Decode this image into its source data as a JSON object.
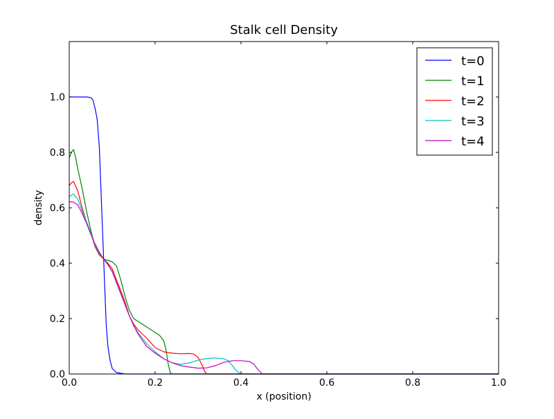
{
  "chart_data": {
    "type": "line",
    "title": "Stalk cell Density",
    "xlabel": "x (position)",
    "ylabel": "density",
    "xlim": [
      0.0,
      1.0
    ],
    "ylim": [
      0.0,
      1.2
    ],
    "grid": false,
    "legend_position": "top-right",
    "x_ticks": [
      0.0,
      0.2,
      0.4,
      0.6,
      0.8,
      1.0
    ],
    "x_tick_labels": [
      "0.0",
      "0.2",
      "0.4",
      "0.6",
      "0.8",
      "1.0"
    ],
    "y_ticks": [
      0.0,
      0.2,
      0.4,
      0.6,
      0.8,
      1.0
    ],
    "y_tick_labels": [
      "0.0",
      "0.2",
      "0.4",
      "0.6",
      "0.8",
      "1.0"
    ],
    "series": [
      {
        "name": "t=0",
        "color": "#0000ff",
        "points": [
          [
            0.0,
            1.0
          ],
          [
            0.02,
            1.0
          ],
          [
            0.04,
            1.0
          ],
          [
            0.05,
            0.998
          ],
          [
            0.055,
            0.99
          ],
          [
            0.06,
            0.96
          ],
          [
            0.065,
            0.92
          ],
          [
            0.07,
            0.82
          ],
          [
            0.073,
            0.7
          ],
          [
            0.076,
            0.58
          ],
          [
            0.08,
            0.42
          ],
          [
            0.083,
            0.3
          ],
          [
            0.086,
            0.18
          ],
          [
            0.09,
            0.1
          ],
          [
            0.095,
            0.05
          ],
          [
            0.1,
            0.02
          ],
          [
            0.11,
            0.005
          ],
          [
            0.13,
            0.0
          ],
          [
            0.2,
            0.0
          ],
          [
            0.4,
            0.0
          ],
          [
            0.6,
            0.0
          ],
          [
            0.8,
            0.0
          ],
          [
            1.0,
            0.0
          ]
        ]
      },
      {
        "name": "t=1",
        "color": "#008000",
        "points": [
          [
            0.0,
            0.78
          ],
          [
            0.005,
            0.8
          ],
          [
            0.01,
            0.81
          ],
          [
            0.015,
            0.78
          ],
          [
            0.02,
            0.74
          ],
          [
            0.03,
            0.67
          ],
          [
            0.04,
            0.59
          ],
          [
            0.05,
            0.52
          ],
          [
            0.06,
            0.46
          ],
          [
            0.07,
            0.43
          ],
          [
            0.08,
            0.415
          ],
          [
            0.09,
            0.41
          ],
          [
            0.1,
            0.405
          ],
          [
            0.11,
            0.39
          ],
          [
            0.12,
            0.34
          ],
          [
            0.13,
            0.28
          ],
          [
            0.14,
            0.23
          ],
          [
            0.15,
            0.2
          ],
          [
            0.17,
            0.18
          ],
          [
            0.19,
            0.16
          ],
          [
            0.21,
            0.14
          ],
          [
            0.22,
            0.12
          ],
          [
            0.225,
            0.09
          ],
          [
            0.23,
            0.04
          ],
          [
            0.235,
            0.005
          ],
          [
            0.24,
            0.0
          ],
          [
            0.3,
            0.0
          ],
          [
            0.5,
            0.0
          ],
          [
            0.8,
            0.0
          ],
          [
            1.0,
            0.0
          ]
        ]
      },
      {
        "name": "t=2",
        "color": "#ff0000",
        "points": [
          [
            0.0,
            0.68
          ],
          [
            0.005,
            0.69
          ],
          [
            0.01,
            0.695
          ],
          [
            0.02,
            0.66
          ],
          [
            0.03,
            0.6
          ],
          [
            0.04,
            0.55
          ],
          [
            0.05,
            0.51
          ],
          [
            0.06,
            0.46
          ],
          [
            0.07,
            0.43
          ],
          [
            0.08,
            0.415
          ],
          [
            0.09,
            0.4
          ],
          [
            0.1,
            0.38
          ],
          [
            0.11,
            0.34
          ],
          [
            0.12,
            0.3
          ],
          [
            0.13,
            0.26
          ],
          [
            0.14,
            0.21
          ],
          [
            0.15,
            0.18
          ],
          [
            0.16,
            0.16
          ],
          [
            0.18,
            0.13
          ],
          [
            0.2,
            0.095
          ],
          [
            0.22,
            0.08
          ],
          [
            0.24,
            0.075
          ],
          [
            0.26,
            0.073
          ],
          [
            0.28,
            0.074
          ],
          [
            0.29,
            0.072
          ],
          [
            0.3,
            0.06
          ],
          [
            0.31,
            0.03
          ],
          [
            0.315,
            0.01
          ],
          [
            0.32,
            0.0
          ],
          [
            0.4,
            0.0
          ],
          [
            0.6,
            0.0
          ],
          [
            1.0,
            0.0
          ]
        ]
      },
      {
        "name": "t=3",
        "color": "#00bfbf",
        "points": [
          [
            0.0,
            0.64
          ],
          [
            0.005,
            0.645
          ],
          [
            0.01,
            0.65
          ],
          [
            0.02,
            0.63
          ],
          [
            0.03,
            0.59
          ],
          [
            0.04,
            0.55
          ],
          [
            0.05,
            0.51
          ],
          [
            0.06,
            0.465
          ],
          [
            0.07,
            0.435
          ],
          [
            0.08,
            0.415
          ],
          [
            0.09,
            0.395
          ],
          [
            0.1,
            0.37
          ],
          [
            0.11,
            0.33
          ],
          [
            0.12,
            0.29
          ],
          [
            0.13,
            0.25
          ],
          [
            0.14,
            0.21
          ],
          [
            0.15,
            0.175
          ],
          [
            0.16,
            0.15
          ],
          [
            0.18,
            0.11
          ],
          [
            0.2,
            0.08
          ],
          [
            0.22,
            0.055
          ],
          [
            0.24,
            0.04
          ],
          [
            0.26,
            0.035
          ],
          [
            0.28,
            0.04
          ],
          [
            0.3,
            0.05
          ],
          [
            0.32,
            0.056
          ],
          [
            0.34,
            0.058
          ],
          [
            0.36,
            0.055
          ],
          [
            0.37,
            0.048
          ],
          [
            0.38,
            0.03
          ],
          [
            0.39,
            0.01
          ],
          [
            0.4,
            0.0
          ],
          [
            0.5,
            0.0
          ],
          [
            0.8,
            0.0
          ],
          [
            1.0,
            0.0
          ]
        ]
      },
      {
        "name": "t=4",
        "color": "#bf00bf",
        "points": [
          [
            0.0,
            0.62
          ],
          [
            0.005,
            0.622
          ],
          [
            0.01,
            0.62
          ],
          [
            0.02,
            0.61
          ],
          [
            0.03,
            0.58
          ],
          [
            0.04,
            0.545
          ],
          [
            0.05,
            0.505
          ],
          [
            0.06,
            0.47
          ],
          [
            0.07,
            0.44
          ],
          [
            0.08,
            0.415
          ],
          [
            0.09,
            0.395
          ],
          [
            0.1,
            0.37
          ],
          [
            0.11,
            0.33
          ],
          [
            0.12,
            0.29
          ],
          [
            0.13,
            0.25
          ],
          [
            0.14,
            0.21
          ],
          [
            0.15,
            0.175
          ],
          [
            0.16,
            0.145
          ],
          [
            0.18,
            0.1
          ],
          [
            0.2,
            0.075
          ],
          [
            0.22,
            0.055
          ],
          [
            0.24,
            0.04
          ],
          [
            0.26,
            0.03
          ],
          [
            0.28,
            0.025
          ],
          [
            0.3,
            0.021
          ],
          [
            0.32,
            0.022
          ],
          [
            0.34,
            0.03
          ],
          [
            0.36,
            0.042
          ],
          [
            0.38,
            0.048
          ],
          [
            0.4,
            0.048
          ],
          [
            0.42,
            0.045
          ],
          [
            0.43,
            0.035
          ],
          [
            0.44,
            0.015
          ],
          [
            0.45,
            0.0
          ],
          [
            0.5,
            0.0
          ],
          [
            0.8,
            0.0
          ],
          [
            1.0,
            0.0
          ]
        ]
      }
    ]
  }
}
